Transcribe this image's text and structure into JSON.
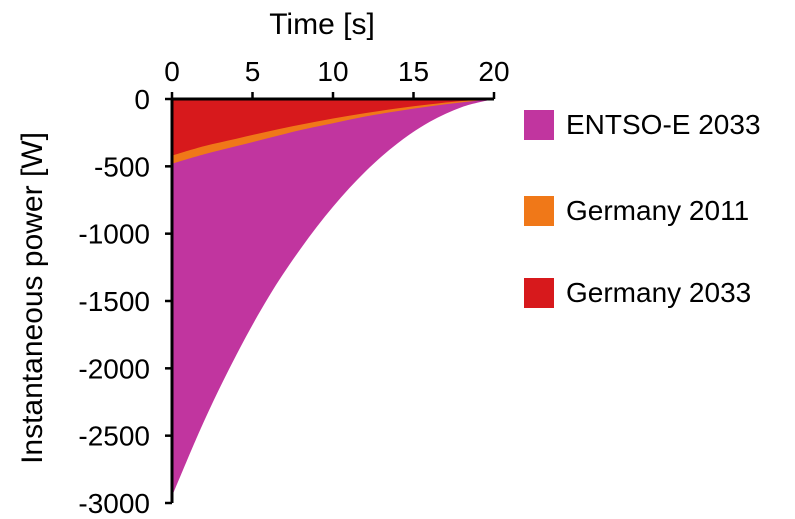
{
  "chart_data": {
    "type": "area",
    "title": "",
    "xlabel": "Time [s]",
    "ylabel": "Instantaneous power [W]",
    "xlim": [
      0,
      20
    ],
    "ylim": [
      -3000,
      0
    ],
    "x_axis_position": "top",
    "xticks": [
      0,
      5,
      10,
      15,
      20
    ],
    "yticks": [
      0,
      -500,
      -1000,
      -1500,
      -2000,
      -2500,
      -3000
    ],
    "xtick_labels": [
      "0",
      "5",
      "10",
      "15",
      "20"
    ],
    "ytick_labels": [
      "0",
      "-500",
      "-1000",
      "-1500",
      "-2000",
      "-2500",
      "-3000"
    ],
    "grid": false,
    "legend_position": "right",
    "x": [
      0,
      2,
      4,
      6,
      8,
      10,
      12,
      14,
      16,
      18,
      20
    ],
    "series": [
      {
        "name": "ENTSO-E 2033",
        "color": "#c1359f",
        "values": [
          -2950,
          -2390,
          -1900,
          -1470,
          -1110,
          -800,
          -540,
          -330,
          -170,
          -60,
          0
        ]
      },
      {
        "name": "Germany 2011",
        "color": "#f07818",
        "values": [
          -480,
          -410,
          -350,
          -290,
          -230,
          -180,
          -130,
          -90,
          -55,
          -25,
          0
        ]
      },
      {
        "name": "Germany 2033",
        "color": "#d7191c",
        "values": [
          -420,
          -350,
          -295,
          -240,
          -190,
          -145,
          -105,
          -70,
          -40,
          -15,
          0
        ]
      }
    ]
  }
}
